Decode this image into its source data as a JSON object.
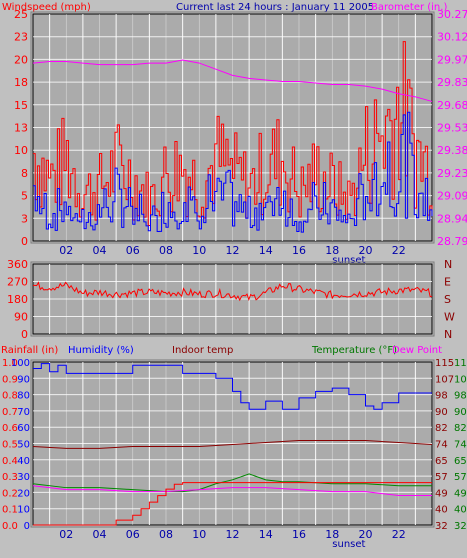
{
  "colors": {
    "background": "#c0c0c0",
    "plot_bg": "#ababab",
    "grid": "#ffffff",
    "red": "#ff0000",
    "blue": "#0000ff",
    "magenta": "#ff00ff",
    "darkred": "#8b0000",
    "darkgreen": "#007700",
    "green": "#008800"
  },
  "header": {
    "windspeed_label": "Windspeed (mph)",
    "subtitle": "Current last 24 hours : January 11 2005",
    "barometer_label": "Barometer (in.)"
  },
  "bottom_header": {
    "rainfall": "Rainfall (in)",
    "humidity": "Humidity (%)",
    "indoor_temp": "Indoor temp",
    "temperature": "Temperature (°F)",
    "dew_point": "Dew Point"
  },
  "x_ticks": [
    "02",
    "04",
    "06",
    "08",
    "10",
    "12",
    "14",
    "16",
    "18",
    "20",
    "22"
  ],
  "sunset_label": "sunset",
  "chart_data": [
    {
      "type": "line",
      "name": "top",
      "y_left_ticks": [
        "0",
        "3",
        "5",
        "8",
        "10",
        "13",
        "15",
        "18",
        "20",
        "23",
        "25"
      ],
      "y_left_range": [
        0,
        25
      ],
      "y_right_ticks": [
        "28.79",
        "28.94",
        "29.09",
        "29.23",
        "29.38",
        "29.53",
        "29.68",
        "29.83",
        "29.97",
        "30.12",
        "30.27"
      ],
      "y_right_range": [
        28.79,
        30.27
      ],
      "barometer": {
        "x": [
          0,
          1,
          2,
          3,
          4,
          5,
          6,
          7,
          8,
          9,
          10,
          11,
          12,
          13,
          14,
          15,
          16,
          17,
          18,
          19,
          20,
          21,
          22,
          23,
          24
        ],
        "y": [
          29.95,
          29.96,
          29.96,
          29.95,
          29.94,
          29.94,
          29.94,
          29.95,
          29.95,
          29.97,
          29.95,
          29.91,
          29.87,
          29.85,
          29.84,
          29.83,
          29.83,
          29.82,
          29.81,
          29.81,
          29.8,
          29.78,
          29.75,
          29.73,
          29.7
        ]
      },
      "windspeed_max_approx": {
        "x": [
          0,
          1,
          2,
          3,
          4,
          5,
          6,
          7,
          8,
          9,
          10,
          11,
          12,
          13,
          14,
          15,
          16,
          17,
          18,
          19,
          20,
          21,
          22,
          23,
          24
        ],
        "y": [
          13,
          9,
          12,
          7,
          8,
          11,
          9,
          6,
          10,
          11,
          8,
          12,
          10,
          8,
          11,
          12,
          7,
          10,
          8,
          6,
          13,
          16,
          20,
          13,
          10
        ]
      },
      "windspeed_avg_approx": {
        "x": [
          0,
          1,
          2,
          3,
          4,
          5,
          6,
          7,
          8,
          9,
          10,
          11,
          12,
          13,
          14,
          15,
          16,
          17,
          18,
          19,
          20,
          21,
          22,
          23,
          24
        ],
        "y": [
          8,
          4,
          6,
          3,
          5,
          7,
          6,
          3,
          6,
          7,
          5,
          8,
          6,
          4,
          7,
          8,
          4,
          6,
          5,
          3,
          9,
          12,
          14,
          10,
          6
        ]
      }
    },
    {
      "type": "line",
      "name": "wind-direction",
      "y_left_ticks": [
        "0",
        "90",
        "180",
        "270",
        "360"
      ],
      "y_left_range": [
        0,
        360
      ],
      "y_right_ticks": [
        "N",
        "E",
        "S",
        "W",
        "N"
      ],
      "direction": {
        "x": [
          0,
          1,
          2,
          3,
          4,
          5,
          6,
          7,
          8,
          9,
          10,
          11,
          12,
          13,
          14,
          15,
          16,
          17,
          18,
          19,
          20,
          21,
          22,
          23,
          24
        ],
        "y": [
          250,
          240,
          250,
          210,
          215,
          205,
          210,
          215,
          210,
          215,
          205,
          210,
          200,
          185,
          210,
          250,
          230,
          215,
          200,
          205,
          210,
          215,
          225,
          225,
          210
        ]
      }
    },
    {
      "type": "line",
      "name": "bottom",
      "y_left1_ticks": [
        "0.0",
        "0.1",
        "0.2",
        "0.3",
        "0.4",
        "0.5",
        "0.6",
        "0.7",
        "0.8",
        "0.9",
        "1.0"
      ],
      "y_left1_range": [
        0,
        1
      ],
      "y_left2_ticks": [
        "0",
        "10",
        "20",
        "30",
        "40",
        "50",
        "60",
        "70",
        "80",
        "90",
        "100"
      ],
      "y_left2_range": [
        0,
        100
      ],
      "y_right1_ticks": [
        "32",
        "40",
        "49",
        "57",
        "65",
        "74",
        "82",
        "90",
        "98",
        "107",
        "115"
      ],
      "y_right1_range": [
        32,
        115
      ],
      "y_right2_ticks": [
        "32",
        "40",
        "49",
        "57",
        "65",
        "74",
        "82",
        "90",
        "98",
        "107",
        "115"
      ],
      "humidity": {
        "x": [
          0,
          0.5,
          1,
          1.5,
          2,
          4,
          5.5,
          6,
          8,
          9,
          10,
          11,
          12,
          12.5,
          13,
          14,
          15,
          16,
          17,
          18,
          19,
          20,
          20.5,
          21,
          22,
          23,
          24
        ],
        "y": [
          96,
          99,
          94,
          98,
          93,
          93,
          93,
          98,
          98,
          93,
          93,
          90,
          82,
          75,
          71,
          76,
          71,
          78,
          82,
          84,
          80,
          73,
          71,
          75,
          81,
          81,
          81
        ]
      },
      "indoor_temp": {
        "x": [
          0,
          2,
          4,
          6,
          8,
          10,
          12,
          14,
          16,
          18,
          20,
          22,
          24
        ],
        "y": [
          72,
          71,
          71,
          72,
          72,
          72,
          73,
          74,
          75,
          75,
          75,
          74,
          73
        ]
      },
      "temperature": {
        "x": [
          0,
          2,
          4,
          6,
          8,
          9,
          10,
          11,
          12,
          13,
          14,
          15,
          16,
          18,
          20,
          22,
          24
        ],
        "y": [
          53,
          51,
          51,
          50,
          49,
          49,
          50,
          53,
          55,
          58,
          55,
          54,
          54,
          53,
          53,
          52,
          52
        ]
      },
      "dew_point": {
        "x": [
          0,
          2,
          4,
          6,
          8,
          10,
          12,
          14,
          16,
          18,
          20,
          22,
          24
        ],
        "y": [
          52,
          50,
          50,
          49,
          49,
          50,
          51,
          51,
          50,
          49,
          49,
          47,
          47
        ]
      },
      "rainfall": {
        "x": [
          0,
          4,
          5,
          6,
          6.5,
          7,
          7.5,
          8,
          8.5,
          9,
          24
        ],
        "y": [
          0,
          0,
          0.03,
          0.06,
          0.1,
          0.14,
          0.18,
          0.22,
          0.25,
          0.26,
          0.26
        ]
      }
    }
  ]
}
